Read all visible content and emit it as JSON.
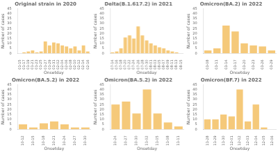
{
  "chart_data": [
    {
      "type": "bar",
      "title": "Original strain in 2020",
      "xlabel": "Onsetday",
      "ylabel": "Number of cases",
      "categories": [
        "01-15",
        "01-17",
        "01-19",
        "01-21",
        "01-23",
        "01-25",
        "01-27",
        "01-29",
        "01-31",
        "02-02",
        "02-04",
        "02-06",
        "02-08",
        "02-10",
        "02-12",
        "02-14",
        "02-16"
      ],
      "values": [
        0,
        1,
        2,
        3,
        1,
        2,
        12,
        8,
        11,
        10,
        8,
        7,
        5,
        7,
        3,
        8,
        2
      ],
      "color": "#f5c97a",
      "ylim": [
        0,
        45
      ],
      "yticks": [
        0,
        5,
        10,
        15,
        20,
        25,
        30,
        35,
        40,
        45
      ],
      "grid": false
    },
    {
      "type": "bar",
      "title": "Delta(B.1.617.2) in 2021",
      "xlabel": "Onsetday",
      "ylabel": "Number of cases",
      "categories": [
        "07-14",
        "07-16",
        "07-18",
        "07-20",
        "07-22",
        "07-24",
        "07-26",
        "07-28",
        "07-30",
        "08-01",
        "08-03",
        "08-05",
        "08-07",
        "08-09",
        "08-11",
        "08-13",
        "08-15"
      ],
      "values": [
        1,
        2,
        5,
        16,
        18,
        15,
        27,
        18,
        13,
        10,
        8,
        6,
        5,
        3,
        2,
        1,
        0
      ],
      "color": "#f5c97a",
      "ylim": [
        0,
        45
      ],
      "yticks": [
        0,
        5,
        10,
        15,
        20,
        25,
        30,
        35,
        40,
        45
      ],
      "grid": false
    },
    {
      "type": "bar",
      "title": "Omicron(BA.2) in 2022",
      "xlabel": "Onsetday",
      "ylabel": "Number of cases",
      "categories": [
        "03-08",
        "03-11",
        "03-14",
        "03-17",
        "03-20",
        "03-23",
        "03-26",
        "03-29"
      ],
      "values": [
        3,
        5,
        28,
        22,
        10,
        8,
        7,
        3
      ],
      "color": "#f5c97a",
      "ylim": [
        0,
        45
      ],
      "yticks": [
        0,
        5,
        10,
        15,
        20,
        25,
        30,
        35,
        40,
        45
      ],
      "grid": false
    },
    {
      "type": "bar",
      "title": "Omicron(BA.5.2) in 2022",
      "xlabel": "Onsetday",
      "ylabel": "Number of cases",
      "categories": [
        "10-12",
        "10-15",
        "10-18",
        "10-21",
        "10-24",
        "10-27",
        "10-30"
      ],
      "values": [
        5,
        2,
        6,
        8,
        5,
        2,
        2
      ],
      "color": "#f5c97a",
      "ylim": [
        0,
        45
      ],
      "yticks": [
        0,
        5,
        10,
        15,
        20,
        25,
        30,
        35,
        40,
        45
      ],
      "grid": false
    },
    {
      "type": "bar",
      "title": "Omicron(BA.5.2) in 2022",
      "xlabel": "Onsetday",
      "ylabel": "Number of cases",
      "categories": [
        "10-24",
        "10-27",
        "10-30",
        "11-02",
        "11-05",
        "11-08",
        "11-11"
      ],
      "values": [
        25,
        28,
        16,
        40,
        16,
        7,
        3
      ],
      "color": "#f5c97a",
      "ylim": [
        0,
        45
      ],
      "yticks": [
        0,
        5,
        10,
        15,
        20,
        25,
        30,
        35,
        40,
        45
      ],
      "grid": false
    },
    {
      "type": "bar",
      "title": "Omicron(BF.7) in 2022",
      "xlabel": "Onsetday",
      "ylabel": "Number of cases",
      "categories": [
        "11-28",
        "11-29",
        "11-30",
        "12-01",
        "12-02",
        "12-03",
        "12-04",
        "12-05",
        "12-06"
      ],
      "values": [
        10,
        10,
        15,
        13,
        40,
        8,
        25,
        2,
        0
      ],
      "color": "#f5c97a",
      "ylim": [
        0,
        45
      ],
      "yticks": [
        0,
        5,
        10,
        15,
        20,
        25,
        30,
        35,
        40,
        45
      ],
      "grid": false
    }
  ]
}
